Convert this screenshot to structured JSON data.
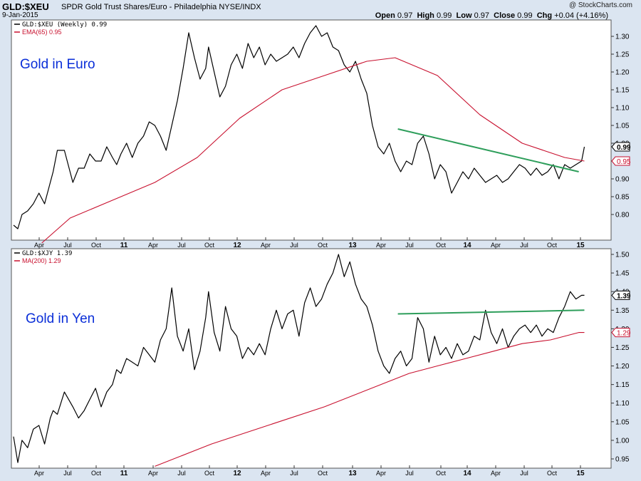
{
  "header": {
    "symbol": "GLD:$XEU",
    "description": "SPDR Gold Trust Shares/Euro - Philadelphia  NYSE/INDX",
    "date": "9-Jan-2015",
    "watermark": "@ StockCharts.com",
    "open_label": "Open",
    "open": "0.97",
    "high_label": "High",
    "high": "0.99",
    "low_label": "Low",
    "low": "0.97",
    "close_label": "Close",
    "close": "0.99",
    "chg_label": "Chg",
    "chg": "+0.04 (+4.16%)"
  },
  "colors": {
    "background": "#dbe5f1",
    "panel": "#ffffff",
    "price": "#000000",
    "ma": "#c8102e",
    "trendline": "#2e9e5b",
    "annotation": "#0a2ed8"
  },
  "x_axis_labels": [
    "Apr",
    "Jul",
    "Oct",
    "11",
    "Apr",
    "Jul",
    "Oct",
    "12",
    "Apr",
    "Jul",
    "Oct",
    "13",
    "Apr",
    "Jul",
    "Oct",
    "14",
    "Apr",
    "Jul",
    "Oct",
    "15"
  ],
  "chart_data": [
    {
      "type": "line",
      "panel": "top",
      "annotation": "Gold in Euro",
      "legend": [
        "GLD:$XEU (Weekly) 0.99",
        "EMA(65) 0.95"
      ],
      "legend_position": "top-left",
      "y_ticks": [
        "1.30",
        "1.25",
        "1.20",
        "1.15",
        "1.10",
        "1.05",
        "1.00",
        "0.95",
        "0.90",
        "0.85",
        "0.80"
      ],
      "ylim": [
        0.74,
        1.33
      ],
      "last_price_label": "0.99",
      "last_ma_label": "0.95",
      "series": [
        {
          "name": "GLD:$XEU (Weekly)",
          "x": [
            0.0,
            0.03,
            0.06,
            0.1,
            0.14,
            0.18,
            0.22,
            0.26,
            0.28,
            0.31,
            0.36,
            0.42,
            0.46,
            0.5,
            0.54,
            0.58,
            0.62,
            0.66,
            0.7,
            0.73,
            0.76,
            0.8,
            0.84,
            0.88,
            0.92,
            0.96,
            1.0,
            1.04,
            1.08,
            1.12,
            1.16,
            1.2,
            1.24,
            1.28,
            1.32,
            1.36,
            1.38,
            1.42,
            1.46,
            1.5,
            1.54,
            1.58,
            1.62,
            1.66,
            1.7,
            1.74,
            1.78,
            1.82,
            1.86,
            1.9,
            1.94,
            1.98,
            2.02,
            2.06,
            2.1,
            2.14,
            2.18,
            2.22,
            2.26,
            2.3,
            2.34,
            2.38,
            2.42,
            2.46,
            2.5,
            2.54,
            2.58,
            2.62,
            2.66,
            2.7,
            2.74,
            2.78,
            2.82,
            2.86,
            2.9,
            2.94,
            2.98,
            3.02,
            3.06,
            3.1,
            3.14,
            3.18,
            3.22,
            3.26,
            3.3,
            3.34,
            3.38,
            3.42,
            3.46,
            3.5,
            3.54,
            3.58,
            3.62,
            3.66,
            3.7,
            3.74,
            3.78,
            3.82,
            3.86,
            3.9,
            3.94,
            3.98,
            4.02,
            4.04
          ],
          "values": [
            0.77,
            0.76,
            0.8,
            0.81,
            0.83,
            0.86,
            0.83,
            0.89,
            0.92,
            0.98,
            0.98,
            0.89,
            0.93,
            0.93,
            0.97,
            0.95,
            0.95,
            0.99,
            0.96,
            0.94,
            0.97,
            1.0,
            0.96,
            1.0,
            1.02,
            1.06,
            1.05,
            1.02,
            0.98,
            1.05,
            1.12,
            1.21,
            1.31,
            1.24,
            1.18,
            1.21,
            1.27,
            1.2,
            1.13,
            1.16,
            1.22,
            1.25,
            1.21,
            1.28,
            1.24,
            1.27,
            1.22,
            1.25,
            1.23,
            1.24,
            1.25,
            1.27,
            1.24,
            1.28,
            1.31,
            1.33,
            1.3,
            1.31,
            1.27,
            1.26,
            1.22,
            1.2,
            1.23,
            1.18,
            1.14,
            1.05,
            0.99,
            0.97,
            1.0,
            0.95,
            0.92,
            0.95,
            0.94,
            1.0,
            1.02,
            0.97,
            0.9,
            0.94,
            0.92,
            0.86,
            0.89,
            0.92,
            0.9,
            0.93,
            0.91,
            0.89,
            0.9,
            0.91,
            0.89,
            0.9,
            0.92,
            0.94,
            0.93,
            0.91,
            0.93,
            0.91,
            0.92,
            0.94,
            0.9,
            0.94,
            0.93,
            0.94,
            0.95,
            0.99
          ]
        },
        {
          "name": "EMA(65)",
          "x": [
            0.2,
            0.4,
            0.7,
            1.0,
            1.3,
            1.6,
            1.9,
            2.2,
            2.5,
            2.7,
            3.0,
            3.3,
            3.6,
            3.9,
            4.04
          ],
          "values": [
            0.72,
            0.79,
            0.84,
            0.89,
            0.96,
            1.07,
            1.15,
            1.19,
            1.23,
            1.24,
            1.19,
            1.08,
            1.0,
            0.96,
            0.95
          ]
        },
        {
          "name": "trendline",
          "x": [
            2.72,
            4.0
          ],
          "values": [
            1.04,
            0.92
          ]
        }
      ]
    },
    {
      "type": "line",
      "panel": "bottom",
      "annotation": "Gold in Yen",
      "legend": [
        "GLD:$XJY 1.39",
        "MA(200) 1.29"
      ],
      "legend_position": "top-left",
      "y_ticks": [
        "1.50",
        "1.45",
        "1.40",
        "1.35",
        "1.30",
        "1.25",
        "1.20",
        "1.15",
        "1.10",
        "1.05",
        "1.00",
        "0.95"
      ],
      "ylim": [
        0.93,
        1.51
      ],
      "last_price_label": "1.39",
      "last_ma_label": "1.29",
      "series": [
        {
          "name": "GLD:$XJY",
          "x": [
            0.0,
            0.03,
            0.06,
            0.1,
            0.14,
            0.18,
            0.22,
            0.26,
            0.28,
            0.31,
            0.36,
            0.42,
            0.46,
            0.5,
            0.54,
            0.58,
            0.62,
            0.66,
            0.7,
            0.73,
            0.76,
            0.8,
            0.84,
            0.88,
            0.92,
            0.96,
            1.0,
            1.04,
            1.08,
            1.12,
            1.16,
            1.2,
            1.24,
            1.28,
            1.32,
            1.36,
            1.38,
            1.42,
            1.46,
            1.5,
            1.54,
            1.58,
            1.62,
            1.66,
            1.7,
            1.74,
            1.78,
            1.82,
            1.86,
            1.9,
            1.94,
            1.98,
            2.02,
            2.06,
            2.1,
            2.14,
            2.18,
            2.22,
            2.26,
            2.3,
            2.34,
            2.38,
            2.42,
            2.46,
            2.5,
            2.54,
            2.58,
            2.62,
            2.66,
            2.7,
            2.74,
            2.78,
            2.82,
            2.86,
            2.9,
            2.94,
            2.98,
            3.02,
            3.06,
            3.1,
            3.14,
            3.18,
            3.22,
            3.26,
            3.3,
            3.34,
            3.38,
            3.42,
            3.46,
            3.5,
            3.54,
            3.58,
            3.62,
            3.66,
            3.7,
            3.74,
            3.78,
            3.82,
            3.86,
            3.9,
            3.94,
            3.98,
            4.02,
            4.04
          ],
          "values": [
            1.01,
            0.94,
            1.0,
            0.98,
            1.03,
            1.04,
            0.99,
            1.06,
            1.08,
            1.07,
            1.13,
            1.09,
            1.06,
            1.08,
            1.11,
            1.14,
            1.09,
            1.13,
            1.15,
            1.19,
            1.18,
            1.22,
            1.21,
            1.2,
            1.25,
            1.23,
            1.21,
            1.27,
            1.3,
            1.41,
            1.28,
            1.24,
            1.3,
            1.19,
            1.24,
            1.33,
            1.4,
            1.29,
            1.24,
            1.36,
            1.3,
            1.28,
            1.22,
            1.25,
            1.23,
            1.26,
            1.23,
            1.3,
            1.35,
            1.3,
            1.34,
            1.35,
            1.28,
            1.37,
            1.41,
            1.36,
            1.38,
            1.42,
            1.45,
            1.5,
            1.44,
            1.48,
            1.42,
            1.38,
            1.36,
            1.31,
            1.24,
            1.2,
            1.18,
            1.22,
            1.24,
            1.2,
            1.22,
            1.33,
            1.3,
            1.21,
            1.28,
            1.23,
            1.25,
            1.22,
            1.26,
            1.23,
            1.24,
            1.28,
            1.27,
            1.35,
            1.29,
            1.26,
            1.3,
            1.25,
            1.28,
            1.3,
            1.31,
            1.29,
            1.31,
            1.28,
            1.3,
            1.29,
            1.33,
            1.36,
            1.4,
            1.38,
            1.39,
            1.39
          ]
        },
        {
          "name": "MA(200)",
          "x": [
            1.0,
            1.4,
            1.8,
            2.2,
            2.6,
            2.8,
            3.0,
            3.2,
            3.4,
            3.6,
            3.8,
            4.0,
            4.04
          ],
          "values": [
            0.93,
            0.99,
            1.04,
            1.09,
            1.15,
            1.18,
            1.2,
            1.22,
            1.24,
            1.26,
            1.27,
            1.29,
            1.29
          ]
        },
        {
          "name": "trendline",
          "x": [
            2.72,
            4.04
          ],
          "values": [
            1.34,
            1.35
          ]
        }
      ]
    }
  ]
}
